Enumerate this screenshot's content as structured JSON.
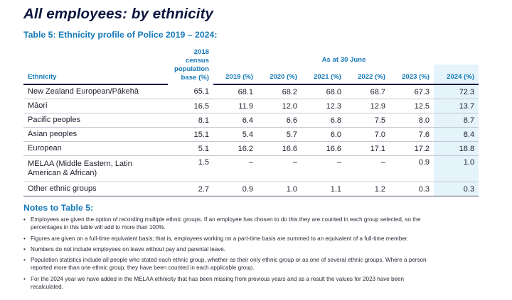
{
  "title": "All employees: by ethnicity",
  "subtitle": "Table 5: Ethnicity profile of Police 2019 – 2024:",
  "table": {
    "header_ethnicity": "Ethnicity",
    "header_base": [
      "2018",
      "census",
      "population",
      "base (%)"
    ],
    "header_group": "As at 30 June",
    "years": [
      "2019 (%)",
      "2020 (%)",
      "2021 (%)",
      "2022 (%)",
      "2023 (%)",
      "2024 (%)"
    ],
    "rows": [
      {
        "name": "New Zealand European/Pākehā",
        "base": "65.1",
        "values": [
          "68.1",
          "68.2",
          "68.0",
          "68.7",
          "67.3",
          "72.3"
        ]
      },
      {
        "name": "Māori",
        "base": "16.5",
        "values": [
          "11.9",
          "12.0",
          "12.3",
          "12.9",
          "12.5",
          "13.7"
        ]
      },
      {
        "name": "Pacific peoples",
        "base": "8.1",
        "values": [
          "6.4",
          "6.6",
          "6.8",
          "7.5",
          "8.0",
          "8.7"
        ]
      },
      {
        "name": "Asian peoples",
        "base": "15.1",
        "values": [
          "5.4",
          "5.7",
          "6.0",
          "7.0",
          "7.6",
          "8.4"
        ]
      },
      {
        "name": "European",
        "base": "5.1",
        "values": [
          "16.2",
          "16.6",
          "16.6",
          "17.1",
          "17.2",
          "18.8"
        ]
      },
      {
        "name": [
          "MELAA (Middle Eastern, Latin",
          "American & African)"
        ],
        "base": "1.5",
        "values": [
          "–",
          "–",
          "–",
          "–",
          "0.9",
          "1.0"
        ]
      },
      {
        "name": "Other ethnic groups",
        "base": "2.7",
        "values": [
          "0.9",
          "1.0",
          "1.1",
          "1.2",
          "0.3",
          "0.3"
        ]
      }
    ]
  },
  "notes_title": "Notes to Table 5:",
  "notes": [
    [
      "Employees are given the option of recording multiple ethnic groups. If an employee has chosen to do this they are counted in each group selected, so the",
      "percentages in this table will add to more than 100%."
    ],
    [
      "Figures are given on a full-time equivalent basis; that is, employees working on a part-time basis are summed to an equivalent of a full-time member."
    ],
    [
      "Numbers do not include employees on leave without pay and parental leave."
    ],
    [
      "Population statistics include all people who stated each ethnic group, whether as their only ethnic group or as one of several ethnic groups. Where a person",
      "reported more than one ethnic group, they have been counted in each applicable group."
    ],
    [
      "For the 2024 year we have added in the MELAA ethnicity that has been missing from previous years and as a result the values for 2023 have been",
      "recalculated."
    ]
  ],
  "colors": {
    "title": "#0b1640",
    "accent": "#1479b8",
    "highlight": "#e5f3fb"
  }
}
